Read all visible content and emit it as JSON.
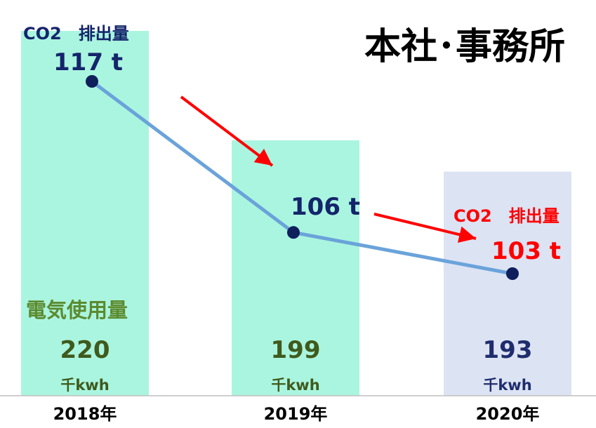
{
  "chart_data": {
    "type": "bar+line",
    "title": "本社･事務所",
    "categories": [
      "2018年",
      "2019年",
      "2020年"
    ],
    "bars": {
      "series_label": "電気使用量",
      "values": [
        220,
        199,
        193
      ],
      "value_labels": [
        "220",
        "199",
        "193"
      ],
      "unit": "千kwh",
      "colors": [
        "#aaf5df",
        "#aaf5df",
        "#dce3f3"
      ],
      "label_colors": [
        "#3f5a1d",
        "#3f5a1d",
        "#1f2d6e"
      ]
    },
    "line": {
      "series_label": "CO2　排出量",
      "values": [
        117,
        106,
        103
      ],
      "value_labels": [
        "117 t",
        "106 t",
        "103 t"
      ],
      "color": "#6aa3da",
      "marker_color": "#0f1f5c",
      "label_colors": [
        "#14256b",
        "#14256b",
        "#ff0000"
      ]
    },
    "annotations": {
      "co2_label_2018": "CO2　排出量",
      "co2_label_2020": "CO2　排出量",
      "arrows": "red, indicating decrease"
    }
  },
  "colors": {
    "arrow": "#ff0000",
    "axis": "#bfbfbf",
    "title": "#000000",
    "category_label": "#000000"
  }
}
